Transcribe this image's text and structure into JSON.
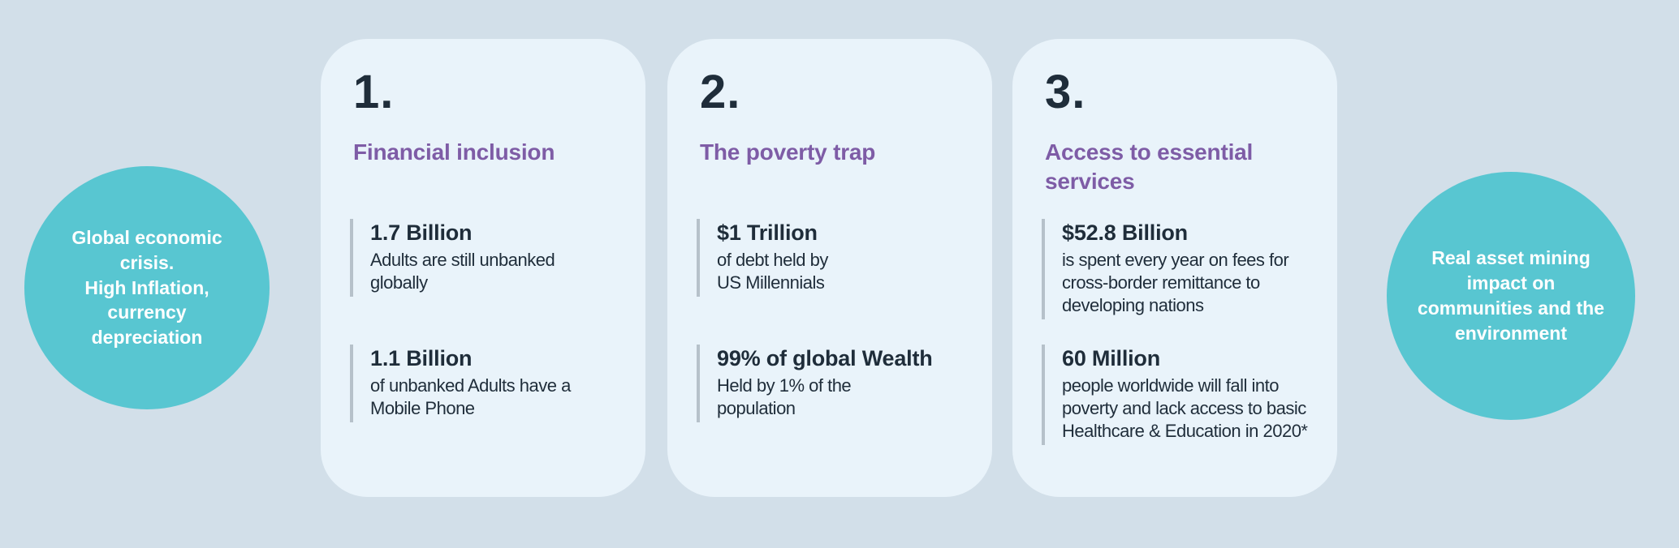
{
  "colors": {
    "background": "#d2dfe9",
    "card_bg": "#e9f3fa",
    "circle_bg": "#58c6d1",
    "circle_text": "#ffffff",
    "purple": "#7e5ca6",
    "dark": "#1f2d3a",
    "bar": "#b6c1ca"
  },
  "left_circle": {
    "text": "Global economic\ncrisis.\nHigh Inflation,\ncurrency\ndepreciation"
  },
  "right_circle": {
    "text": "Real asset  mining\nimpact on\ncommunities and the\nenvironment"
  },
  "cards": [
    {
      "number": "1.",
      "title": "Financial inclusion",
      "stats": [
        {
          "value": "1.7 Billion",
          "description": "Adults are still unbanked\nglobally"
        },
        {
          "value": "1.1 Billion",
          "description": "of unbanked Adults have a\nMobile Phone"
        }
      ]
    },
    {
      "number": "2.",
      "title": "The poverty trap",
      "stats": [
        {
          "value": "$1 Trillion",
          "description": "of debt held by\nUS Millennials"
        },
        {
          "value": "99% of global Wealth",
          "description": "Held by 1% of the\npopulation"
        }
      ]
    },
    {
      "number": "3.",
      "title": "Access to essential\nservices",
      "stats": [
        {
          "value": "$52.8 Billion",
          "description": "is spent every year on fees for\ncross-border remittance to\ndeveloping nations"
        },
        {
          "value": "60 Million",
          "description": "people worldwide will fall into\npoverty and lack access to basic\nHealthcare & Education in 2020*"
        }
      ]
    }
  ]
}
